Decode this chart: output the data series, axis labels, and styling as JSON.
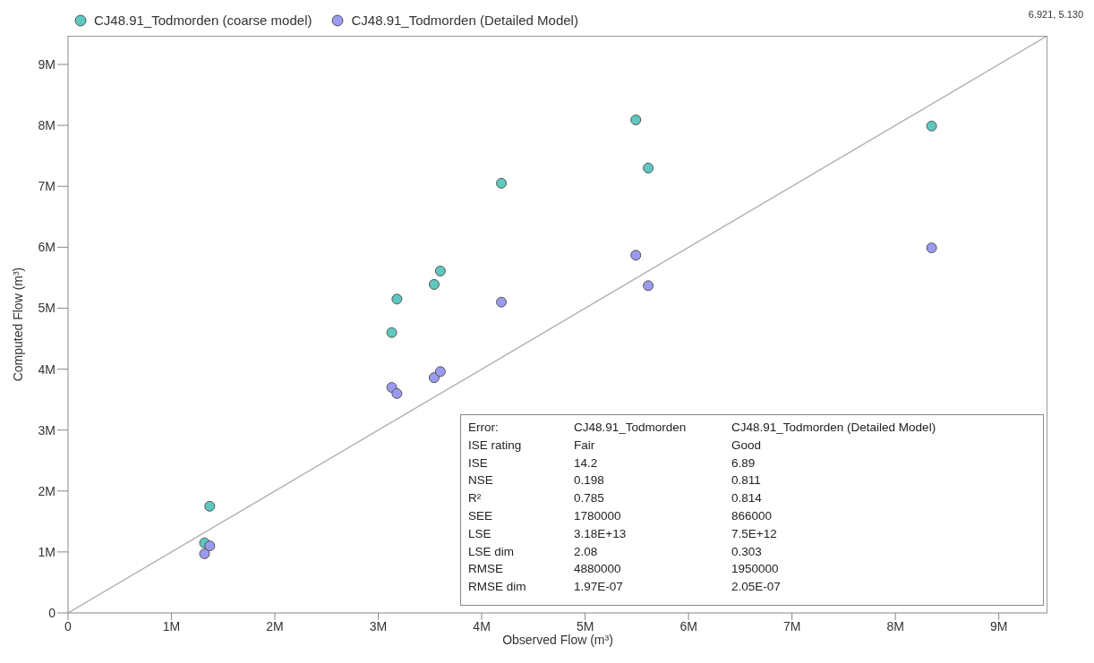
{
  "chart_data": {
    "type": "scatter",
    "xlabel": "Observed Flow (m³)",
    "ylabel": "Computed Flow (m³)",
    "xlim": [
      0,
      9470000
    ],
    "ylim": [
      0,
      9470000
    ],
    "xticks": [
      0,
      {
        "value": 1000000,
        "label": "1M"
      },
      {
        "value": 2000000,
        "label": "2M"
      },
      {
        "value": 3000000,
        "label": "3M"
      },
      {
        "value": 4000000,
        "label": "4M"
      },
      {
        "value": 5000000,
        "label": "5M"
      },
      {
        "value": 6000000,
        "label": "6M"
      },
      {
        "value": 7000000,
        "label": "7M"
      },
      {
        "value": 8000000,
        "label": "8M"
      },
      {
        "value": 9000000,
        "label": "9M"
      }
    ],
    "yticks": [
      0,
      {
        "value": 1000000,
        "label": "1M"
      },
      {
        "value": 2000000,
        "label": "2M"
      },
      {
        "value": 3000000,
        "label": "3M"
      },
      {
        "value": 4000000,
        "label": "4M"
      },
      {
        "value": 5000000,
        "label": "5M"
      },
      {
        "value": 6000000,
        "label": "6M"
      },
      {
        "value": 7000000,
        "label": "7M"
      },
      {
        "value": 8000000,
        "label": "8M"
      },
      {
        "value": 9000000,
        "label": "9M"
      }
    ],
    "grid": false,
    "legend": "top left",
    "series": [
      {
        "name": "CJ48.91_Todmorden (coarse model)",
        "color": "#5ec8c0",
        "marker": "circle",
        "x": [
          1320000,
          1370000,
          3130000,
          3180000,
          3540000,
          3600000,
          4190000,
          5490000,
          5610000,
          8350000
        ],
        "values": [
          1150000,
          1750000,
          4600000,
          5150000,
          5390000,
          5610000,
          7050000,
          8090000,
          7300000,
          7990000
        ]
      },
      {
        "name": "CJ48.91_Todmorden (Detailed Model)",
        "color": "#9a9af0",
        "marker": "circle",
        "x": [
          1320000,
          1370000,
          3130000,
          3180000,
          3540000,
          3600000,
          4190000,
          5490000,
          5610000,
          8350000
        ],
        "values": [
          970000,
          1100000,
          3700000,
          3600000,
          3860000,
          3960000,
          5100000,
          5870000,
          5370000,
          5990000
        ]
      },
      {
        "type": "line",
        "color": "#b4b4b4",
        "marker": "none",
        "x": [
          0,
          9470000
        ],
        "values": [
          0,
          9470000
        ]
      }
    ],
    "annotations": [
      "6.921, 5.130",
      "Error:",
      "CJ48.91_Todmorden",
      "CJ48.91_Todmorden (Detailed Model)",
      "ISE rating",
      "Fair",
      "Good",
      "ISE",
      "14.2",
      "6.89",
      "NSE",
      "0.198",
      "0.811",
      "R²",
      "0.785",
      "0.814",
      "SEE",
      "1780000",
      "866000",
      "LSE",
      "3.18E+13",
      "7.5E+12",
      "LSE dim",
      "2.08",
      "0.303",
      "RMSE",
      "4880000",
      "1950000",
      "RMSE dim",
      "1.97E-07",
      "2.05E-07"
    ]
  }
}
